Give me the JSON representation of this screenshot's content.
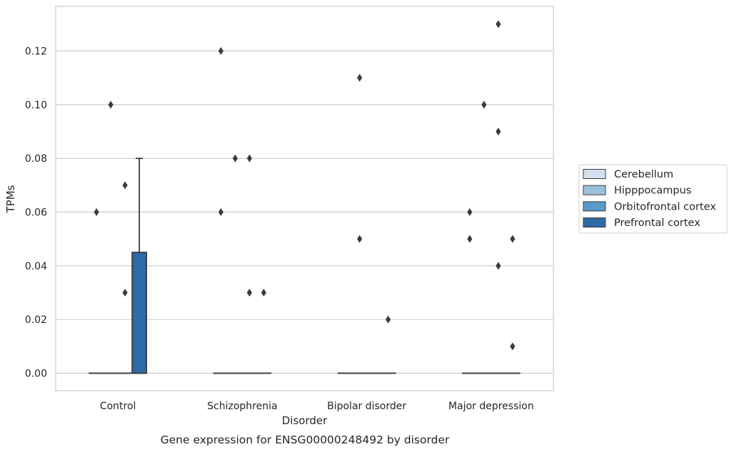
{
  "chart_data": {
    "type": "box",
    "title": "",
    "caption": "Gene expression for ENSG00000248492 by disorder",
    "xlabel": "Disorder",
    "ylabel": "TPMs",
    "ylim": [
      -0.0065,
      0.137
    ],
    "yticks": [
      0.0,
      0.02,
      0.04,
      0.06,
      0.08,
      0.1,
      0.12
    ],
    "ytick_labels": [
      "0.00",
      "0.02",
      "0.04",
      "0.06",
      "0.08",
      "0.10",
      "0.12"
    ],
    "grid": true,
    "legend_position": "right",
    "categories": [
      "Control",
      "Schizophrenia",
      "Bipolar disorder",
      "Major depression"
    ],
    "series": [
      {
        "name": "Cerebellum",
        "color": "#d1e1ef",
        "boxes": [
          {
            "q1": 0,
            "median": 0,
            "q3": 0,
            "whisker_low": 0,
            "whisker_high": 0,
            "outliers": [
              0.06
            ]
          },
          {
            "q1": 0,
            "median": 0,
            "q3": 0,
            "whisker_low": 0,
            "whisker_high": 0,
            "outliers": [
              0.12,
              0.06
            ]
          },
          {
            "q1": 0,
            "median": 0,
            "q3": 0,
            "whisker_low": 0,
            "whisker_high": 0,
            "outliers": []
          },
          {
            "q1": 0,
            "median": 0,
            "q3": 0,
            "whisker_low": 0,
            "whisker_high": 0,
            "outliers": [
              0.06,
              0.05
            ]
          }
        ]
      },
      {
        "name": "Hipppocampus",
        "color": "#9ac2dc",
        "boxes": [
          {
            "q1": 0,
            "median": 0,
            "q3": 0,
            "whisker_low": 0,
            "whisker_high": 0,
            "outliers": [
              0.1
            ]
          },
          {
            "q1": 0,
            "median": 0,
            "q3": 0,
            "whisker_low": 0,
            "whisker_high": 0,
            "outliers": [
              0.08
            ]
          },
          {
            "q1": 0,
            "median": 0,
            "q3": 0,
            "whisker_low": 0,
            "whisker_high": 0,
            "outliers": [
              0.11,
              0.05
            ]
          },
          {
            "q1": 0,
            "median": 0,
            "q3": 0,
            "whisker_low": 0,
            "whisker_high": 0,
            "outliers": [
              0.1
            ]
          }
        ]
      },
      {
        "name": "Orbitofrontal cortex",
        "color": "#5a9ac8",
        "boxes": [
          {
            "q1": 0,
            "median": 0,
            "q3": 0,
            "whisker_low": 0,
            "whisker_high": 0,
            "outliers": [
              0.07,
              0.03
            ]
          },
          {
            "q1": 0,
            "median": 0,
            "q3": 0,
            "whisker_low": 0,
            "whisker_high": 0,
            "outliers": [
              0.08,
              0.03
            ]
          },
          {
            "q1": 0,
            "median": 0,
            "q3": 0,
            "whisker_low": 0,
            "whisker_high": 0,
            "outliers": []
          },
          {
            "q1": 0,
            "median": 0,
            "q3": 0,
            "whisker_low": 0,
            "whisker_high": 0,
            "outliers": [
              0.13,
              0.09,
              0.04
            ]
          }
        ]
      },
      {
        "name": "Prefrontal cortex",
        "color": "#2d6aa6",
        "boxes": [
          {
            "q1": 0,
            "median": 0,
            "q3": 0.045,
            "whisker_low": 0,
            "whisker_high": 0.08,
            "outliers": []
          },
          {
            "q1": 0,
            "median": 0,
            "q3": 0,
            "whisker_low": 0,
            "whisker_high": 0,
            "outliers": [
              0.03
            ]
          },
          {
            "q1": 0,
            "median": 0,
            "q3": 0,
            "whisker_low": 0,
            "whisker_high": 0,
            "outliers": [
              0.02
            ]
          },
          {
            "q1": 0,
            "median": 0,
            "q3": 0,
            "whisker_low": 0,
            "whisker_high": 0,
            "outliers": [
              0.05,
              0.01
            ]
          }
        ]
      }
    ]
  }
}
